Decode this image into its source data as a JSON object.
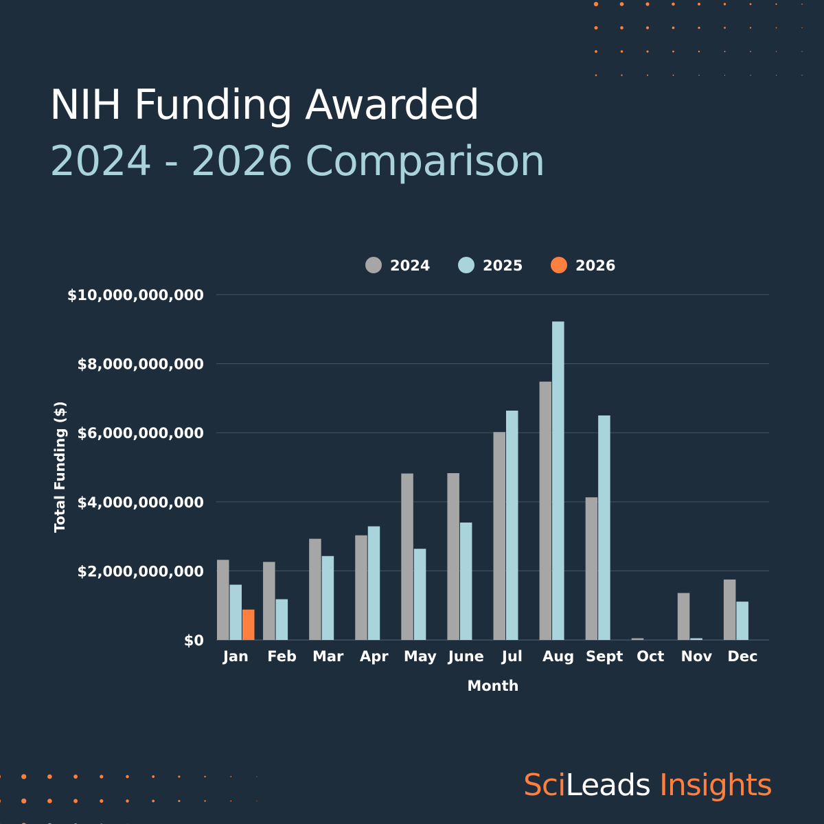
{
  "header": {
    "title": "NIH Funding Awarded",
    "subtitle": "2024 - 2026 Comparison"
  },
  "brand": {
    "part1": "Sci",
    "part2": "Leads",
    "part3": " Insights"
  },
  "colors": {
    "background": "#1d2d3c",
    "2024": "#a6a6a6",
    "2025": "#aad4db",
    "2026": "#ff7f3f",
    "accent": "#ff7f3f"
  },
  "chart_data": {
    "type": "bar",
    "xlabel": "Month",
    "ylabel": "Total Funding ($)",
    "ylim": [
      0,
      10000000000
    ],
    "yticks": [
      "$0",
      "$2,000,000,000",
      "$4,000,000,000",
      "$6,000,000,000",
      "$8,000,000,000",
      "$10,000,000,000"
    ],
    "grid": true,
    "legend_position": "top",
    "categories": [
      "Jan",
      "Feb",
      "Mar",
      "Apr",
      "May",
      "June",
      "Jul",
      "Aug",
      "Sept",
      "Oct",
      "Nov",
      "Dec"
    ],
    "series": [
      {
        "name": "2024",
        "color": "#a6a6a6",
        "values": [
          2320000000,
          2260000000,
          2930000000,
          3030000000,
          4820000000,
          4830000000,
          6020000000,
          7480000000,
          4130000000,
          50000000,
          1360000000,
          1750000000
        ]
      },
      {
        "name": "2025",
        "color": "#aad4db",
        "values": [
          1600000000,
          1180000000,
          2430000000,
          3290000000,
          2640000000,
          3400000000,
          6640000000,
          9220000000,
          6500000000,
          0,
          50000000,
          1110000000
        ]
      },
      {
        "name": "2026",
        "color": "#ff7f3f",
        "values": [
          880000000,
          null,
          null,
          null,
          null,
          null,
          null,
          null,
          null,
          null,
          null,
          null
        ]
      }
    ]
  }
}
